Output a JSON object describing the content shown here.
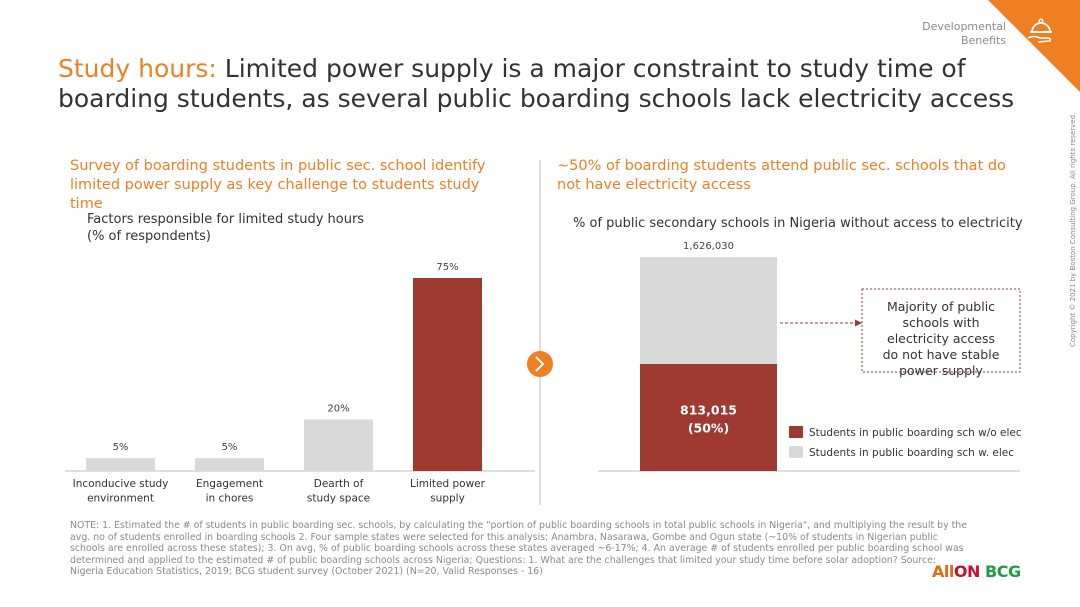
{
  "header": {
    "tag_line1": "Developmental",
    "tag_line2": "Benefits",
    "icon": "hand-bell-icon",
    "accent_color": "#ee7f22"
  },
  "title": {
    "highlight": "Study hours:",
    "rest": " Limited power supply is a major constraint to study time of boarding students, as several public boarding schools lack electricity access"
  },
  "left": {
    "subhead": "Survey of boarding students in public sec. school identify limited power supply as key challenge to students study time",
    "chart_title_line1": "Factors responsible for limited study hours",
    "chart_title_line2": "(% of respondents)"
  },
  "right": {
    "subhead": "~50% of boarding students attend public sec. schools that do not have electricity access",
    "chart_title": "% of public secondary schools in Nigeria without access to electricity",
    "callout": "Majority of public schools with electricity access do not have stable power supply"
  },
  "chart_data": [
    {
      "type": "bar",
      "title": "Factors responsible for limited study hours (% of respondents)",
      "categories": [
        "Inconducive study environment",
        "Engagement in chores",
        "Dearth of study space",
        "Limited power supply"
      ],
      "category_lines": [
        [
          "Inconducive study",
          "environment"
        ],
        [
          "Engagement",
          "in chores"
        ],
        [
          "Dearth of",
          "study space"
        ],
        [
          "Limited power",
          "supply"
        ]
      ],
      "values": [
        5,
        5,
        20,
        75
      ],
      "data_labels": [
        "5%",
        "5%",
        "20%",
        "75%"
      ],
      "colors": [
        "#d9d9d9",
        "#d9d9d9",
        "#d9d9d9",
        "#9e3a32"
      ],
      "ylim": [
        0,
        75
      ]
    },
    {
      "type": "bar",
      "stacked": true,
      "title": "% of public secondary schools in Nigeria without access to electricity",
      "total": 1626030,
      "total_label": "1,626,030",
      "series": [
        {
          "name": "Students in public boarding sch w/o elec",
          "value": 813015,
          "label_line1": "813,015",
          "label_line2": "(50%)",
          "color": "#9e3a32"
        },
        {
          "name": "Students in public boarding sch w. elec",
          "value": 813015,
          "color": "#d9d9d9"
        }
      ]
    }
  ],
  "note": "NOTE: 1. Estimated the # of students in public boarding sec. schools, by calculating the \"portion of public boarding schools in total public schools in Nigeria\", and multiplying the result by the avg. no of students enrolled in boarding schools    2. Four sample states were selected for this analysis; Anambra, Nasarawa, Gombe and Ogun state (~10% of students in Nigerian public schools are enrolled across these states); 3. On avg, % of public boarding schools across these states averaged ~6-17%; 4. An average # of students enrolled per public boarding school was determined and applied to the estimated # of public boarding schools across Nigeria; Questions: 1. What are the challenges that limited your study time before solar adoption? Source: Nigeria Education Statistics, 2019; BCG student survey (October 2021) (N=20, Valid Responses - 16)",
  "copyright": "Copyright © 2021 by Boston Consulting Group. All rights reserved.",
  "logos": {
    "allon_a": "All",
    "allon_b": "ON",
    "bcg": "BCG"
  }
}
